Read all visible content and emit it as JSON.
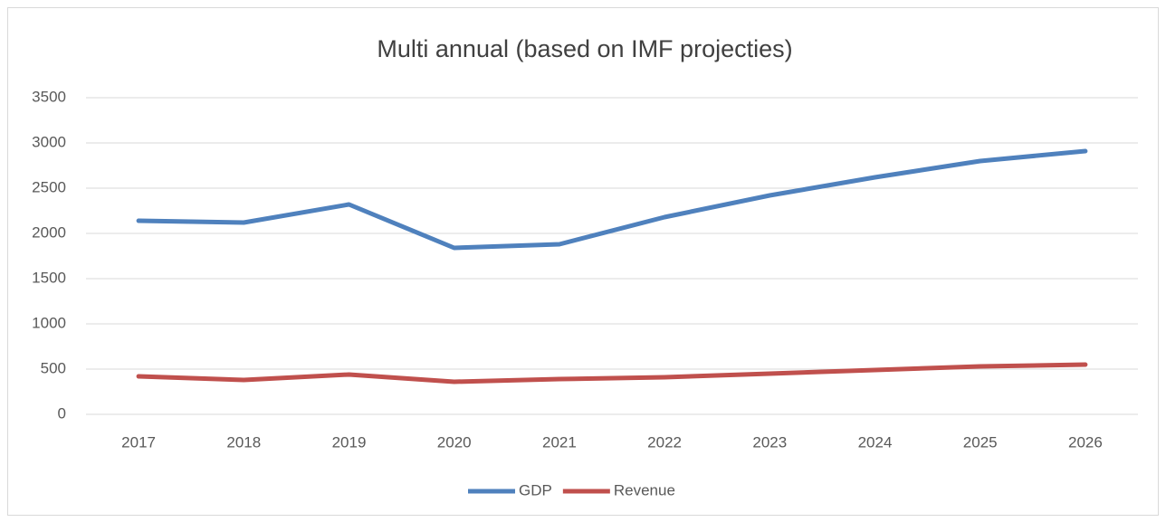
{
  "chart_data": {
    "type": "line",
    "title": "Multi annual (based on IMF projecties)",
    "categories": [
      "2017",
      "2018",
      "2019",
      "2020",
      "2021",
      "2022",
      "2023",
      "2024",
      "2025",
      "2026"
    ],
    "series": [
      {
        "name": "GDP",
        "color": "#4f81bd",
        "values": [
          2140,
          2120,
          2320,
          1840,
          1880,
          2180,
          2420,
          2620,
          2800,
          2910
        ]
      },
      {
        "name": "Revenue",
        "color": "#c0504d",
        "values": [
          420,
          380,
          440,
          360,
          390,
          410,
          450,
          490,
          530,
          550
        ]
      }
    ],
    "ylim": [
      0,
      3500
    ],
    "yticks": [
      0,
      500,
      1000,
      1500,
      2000,
      2500,
      3000,
      3500
    ],
    "grid": true,
    "legend": "bottom"
  }
}
